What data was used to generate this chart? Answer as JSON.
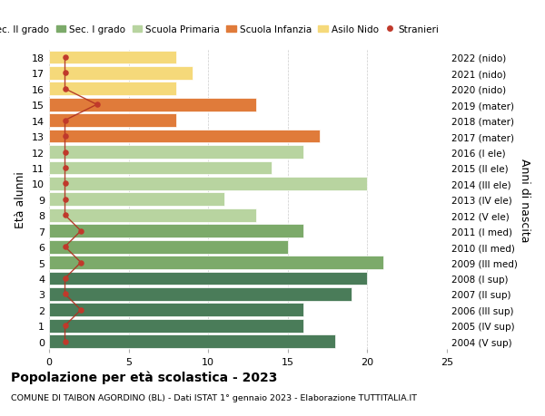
{
  "ages": [
    18,
    17,
    16,
    15,
    14,
    13,
    12,
    11,
    10,
    9,
    8,
    7,
    6,
    5,
    4,
    3,
    2,
    1,
    0
  ],
  "right_labels": [
    "2004 (V sup)",
    "2005 (IV sup)",
    "2006 (III sup)",
    "2007 (II sup)",
    "2008 (I sup)",
    "2009 (III med)",
    "2010 (II med)",
    "2011 (I med)",
    "2012 (V ele)",
    "2013 (IV ele)",
    "2014 (III ele)",
    "2015 (II ele)",
    "2016 (I ele)",
    "2017 (mater)",
    "2018 (mater)",
    "2019 (mater)",
    "2020 (nido)",
    "2021 (nido)",
    "2022 (nido)"
  ],
  "bar_values": [
    18,
    16,
    16,
    19,
    20,
    21,
    15,
    16,
    13,
    11,
    20,
    14,
    16,
    17,
    8,
    13,
    8,
    9,
    8
  ],
  "bar_colors": [
    "#4a7c59",
    "#4a7c59",
    "#4a7c59",
    "#4a7c59",
    "#4a7c59",
    "#7caa6a",
    "#7caa6a",
    "#7caa6a",
    "#b8d4a0",
    "#b8d4a0",
    "#b8d4a0",
    "#b8d4a0",
    "#b8d4a0",
    "#e07b3a",
    "#e07b3a",
    "#e07b3a",
    "#f5d97a",
    "#f5d97a",
    "#f5d97a"
  ],
  "stranieri_values": [
    1,
    1,
    2,
    1,
    1,
    2,
    1,
    2,
    1,
    1,
    1,
    1,
    1,
    1,
    1,
    3,
    1,
    1,
    1
  ],
  "legend_labels": [
    "Sec. II grado",
    "Sec. I grado",
    "Scuola Primaria",
    "Scuola Infanzia",
    "Asilo Nido",
    "Stranieri"
  ],
  "legend_colors": [
    "#4a7c59",
    "#7caa6a",
    "#b8d4a0",
    "#e07b3a",
    "#f5d97a",
    "#c0392b"
  ],
  "stranieri_color": "#c0392b",
  "stranieri_line_color": "#b03020",
  "ylabel_left": "Età alunni",
  "ylabel_right": "Anni di nascita",
  "title_bold": "Popolazione per età scolastica - 2023",
  "subtitle": "COMUNE DI TAIBON AGORDINO (BL) - Dati ISTAT 1° gennaio 2023 - Elaborazione TUTTITALIA.IT",
  "xlim": [
    0,
    25
  ],
  "background_color": "#ffffff",
  "grid_color": "#cccccc"
}
